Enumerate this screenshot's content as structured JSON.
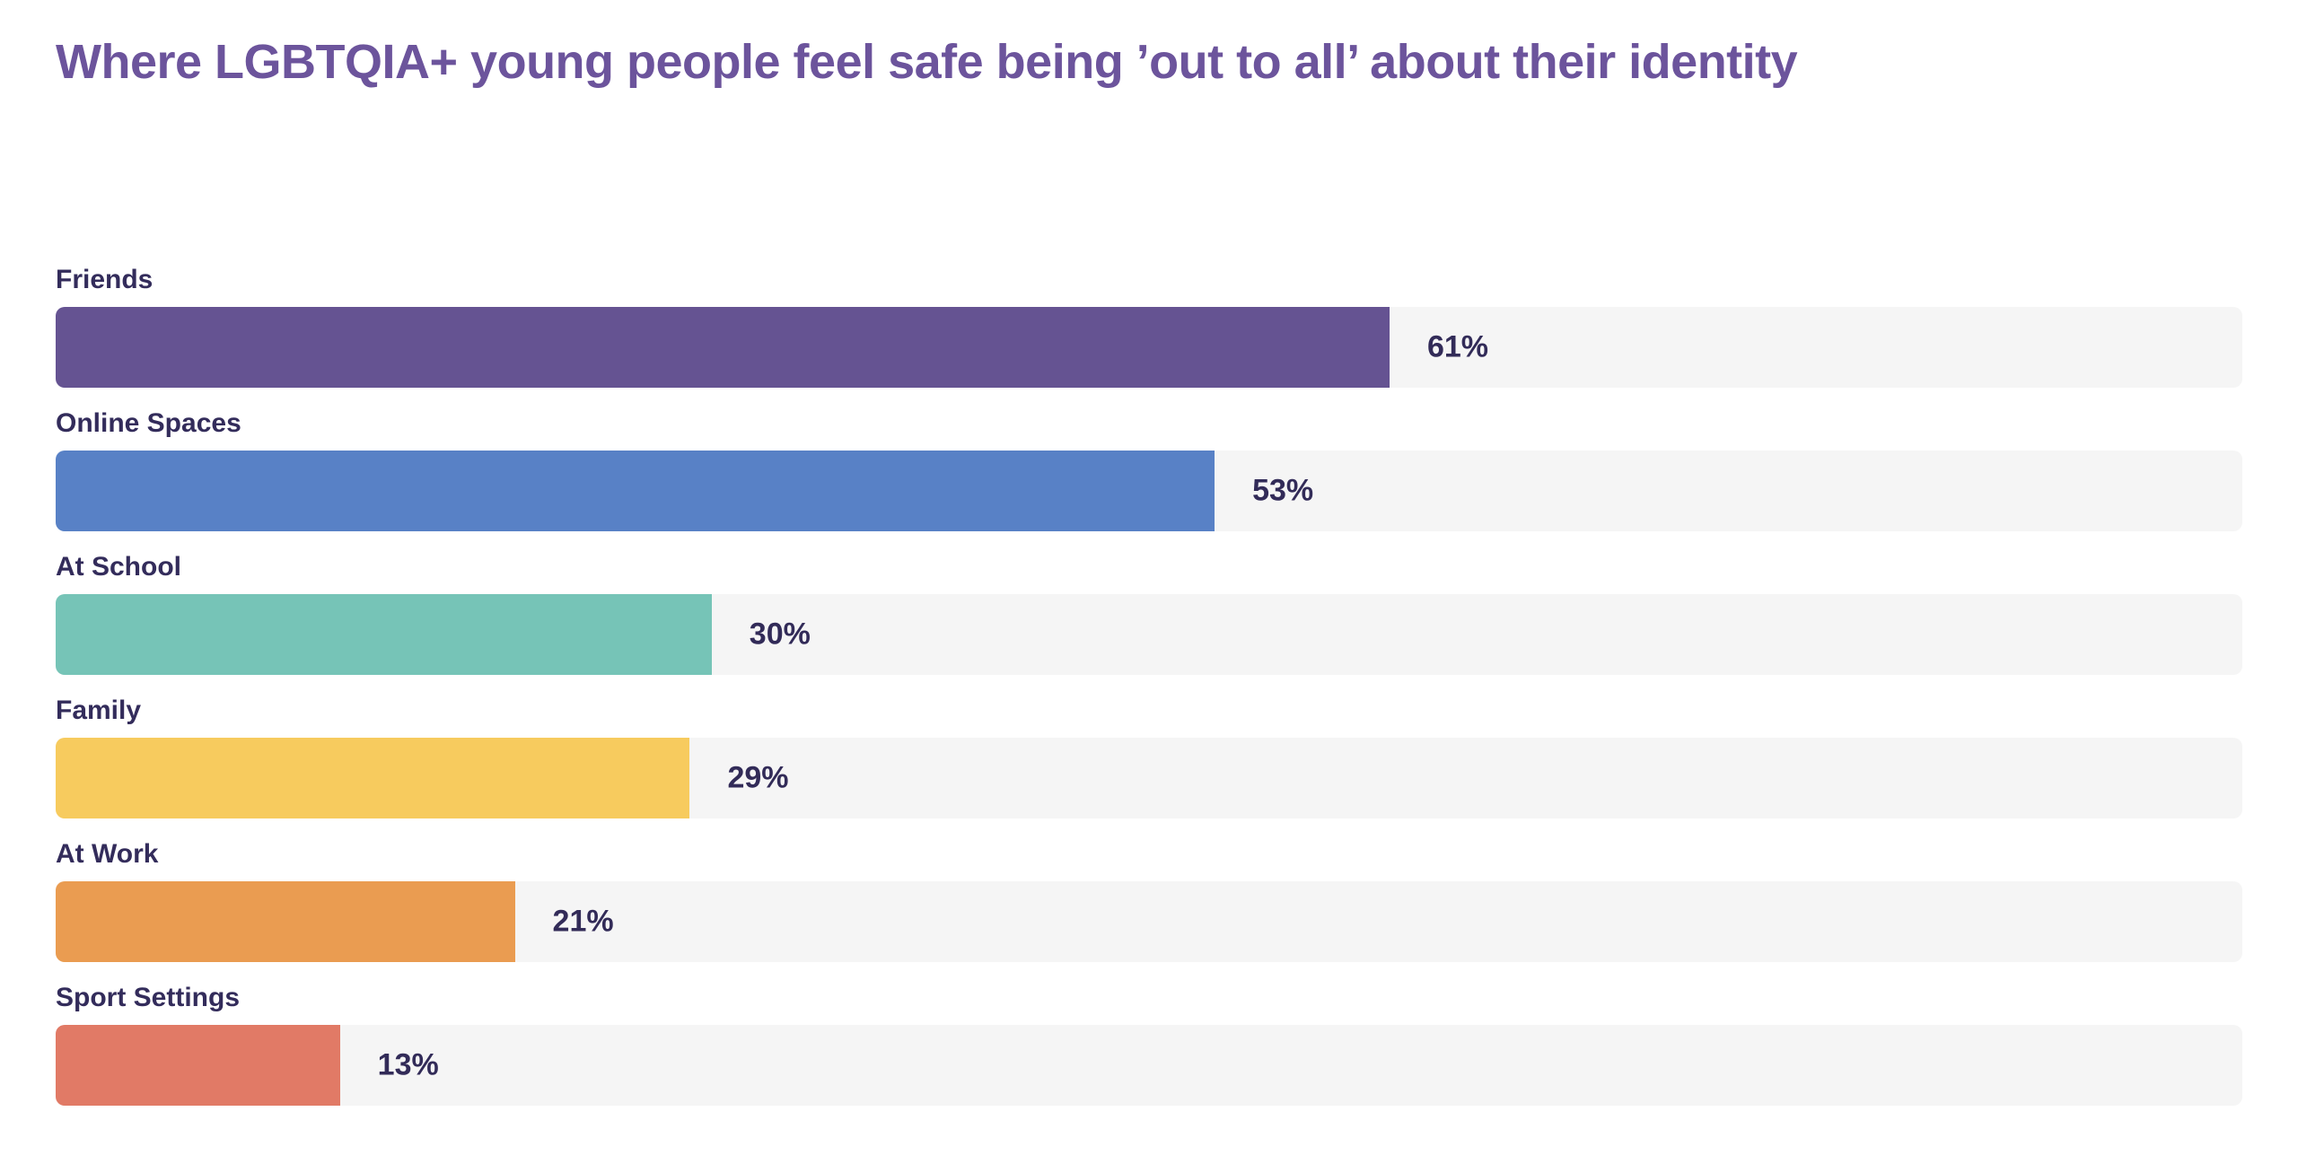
{
  "title": "Where LGBTQIA+ young people feel safe being ’out to all’ about their identity",
  "colors": {
    "background": "#FFFFFF",
    "title": "#6C549C",
    "category_label": "#332C5B",
    "value_label": "#322B58",
    "track": "#F5F5F5"
  },
  "chart_data": {
    "type": "bar",
    "orientation": "horizontal",
    "title": "Where LGBTQIA+ young people feel safe being ’out to all’ about their identity",
    "categories": [
      "Friends",
      "Online Spaces",
      "At School",
      "Family",
      "At Work",
      "Sport Settings"
    ],
    "values": [
      61,
      53,
      30,
      29,
      21,
      13
    ],
    "value_labels": [
      "61%",
      "53%",
      "30%",
      "29%",
      "21%",
      "13%"
    ],
    "bar_colors": [
      "#655392",
      "#5881C6",
      "#76C4B7",
      "#F7CB5E",
      "#EA9C51",
      "#E17A66"
    ],
    "track_color": "#F5F5F5",
    "xlim": [
      0,
      100
    ],
    "xlabel": "",
    "ylabel": "",
    "grid": false,
    "legend": false,
    "value_label_position": "right-of-bar"
  }
}
